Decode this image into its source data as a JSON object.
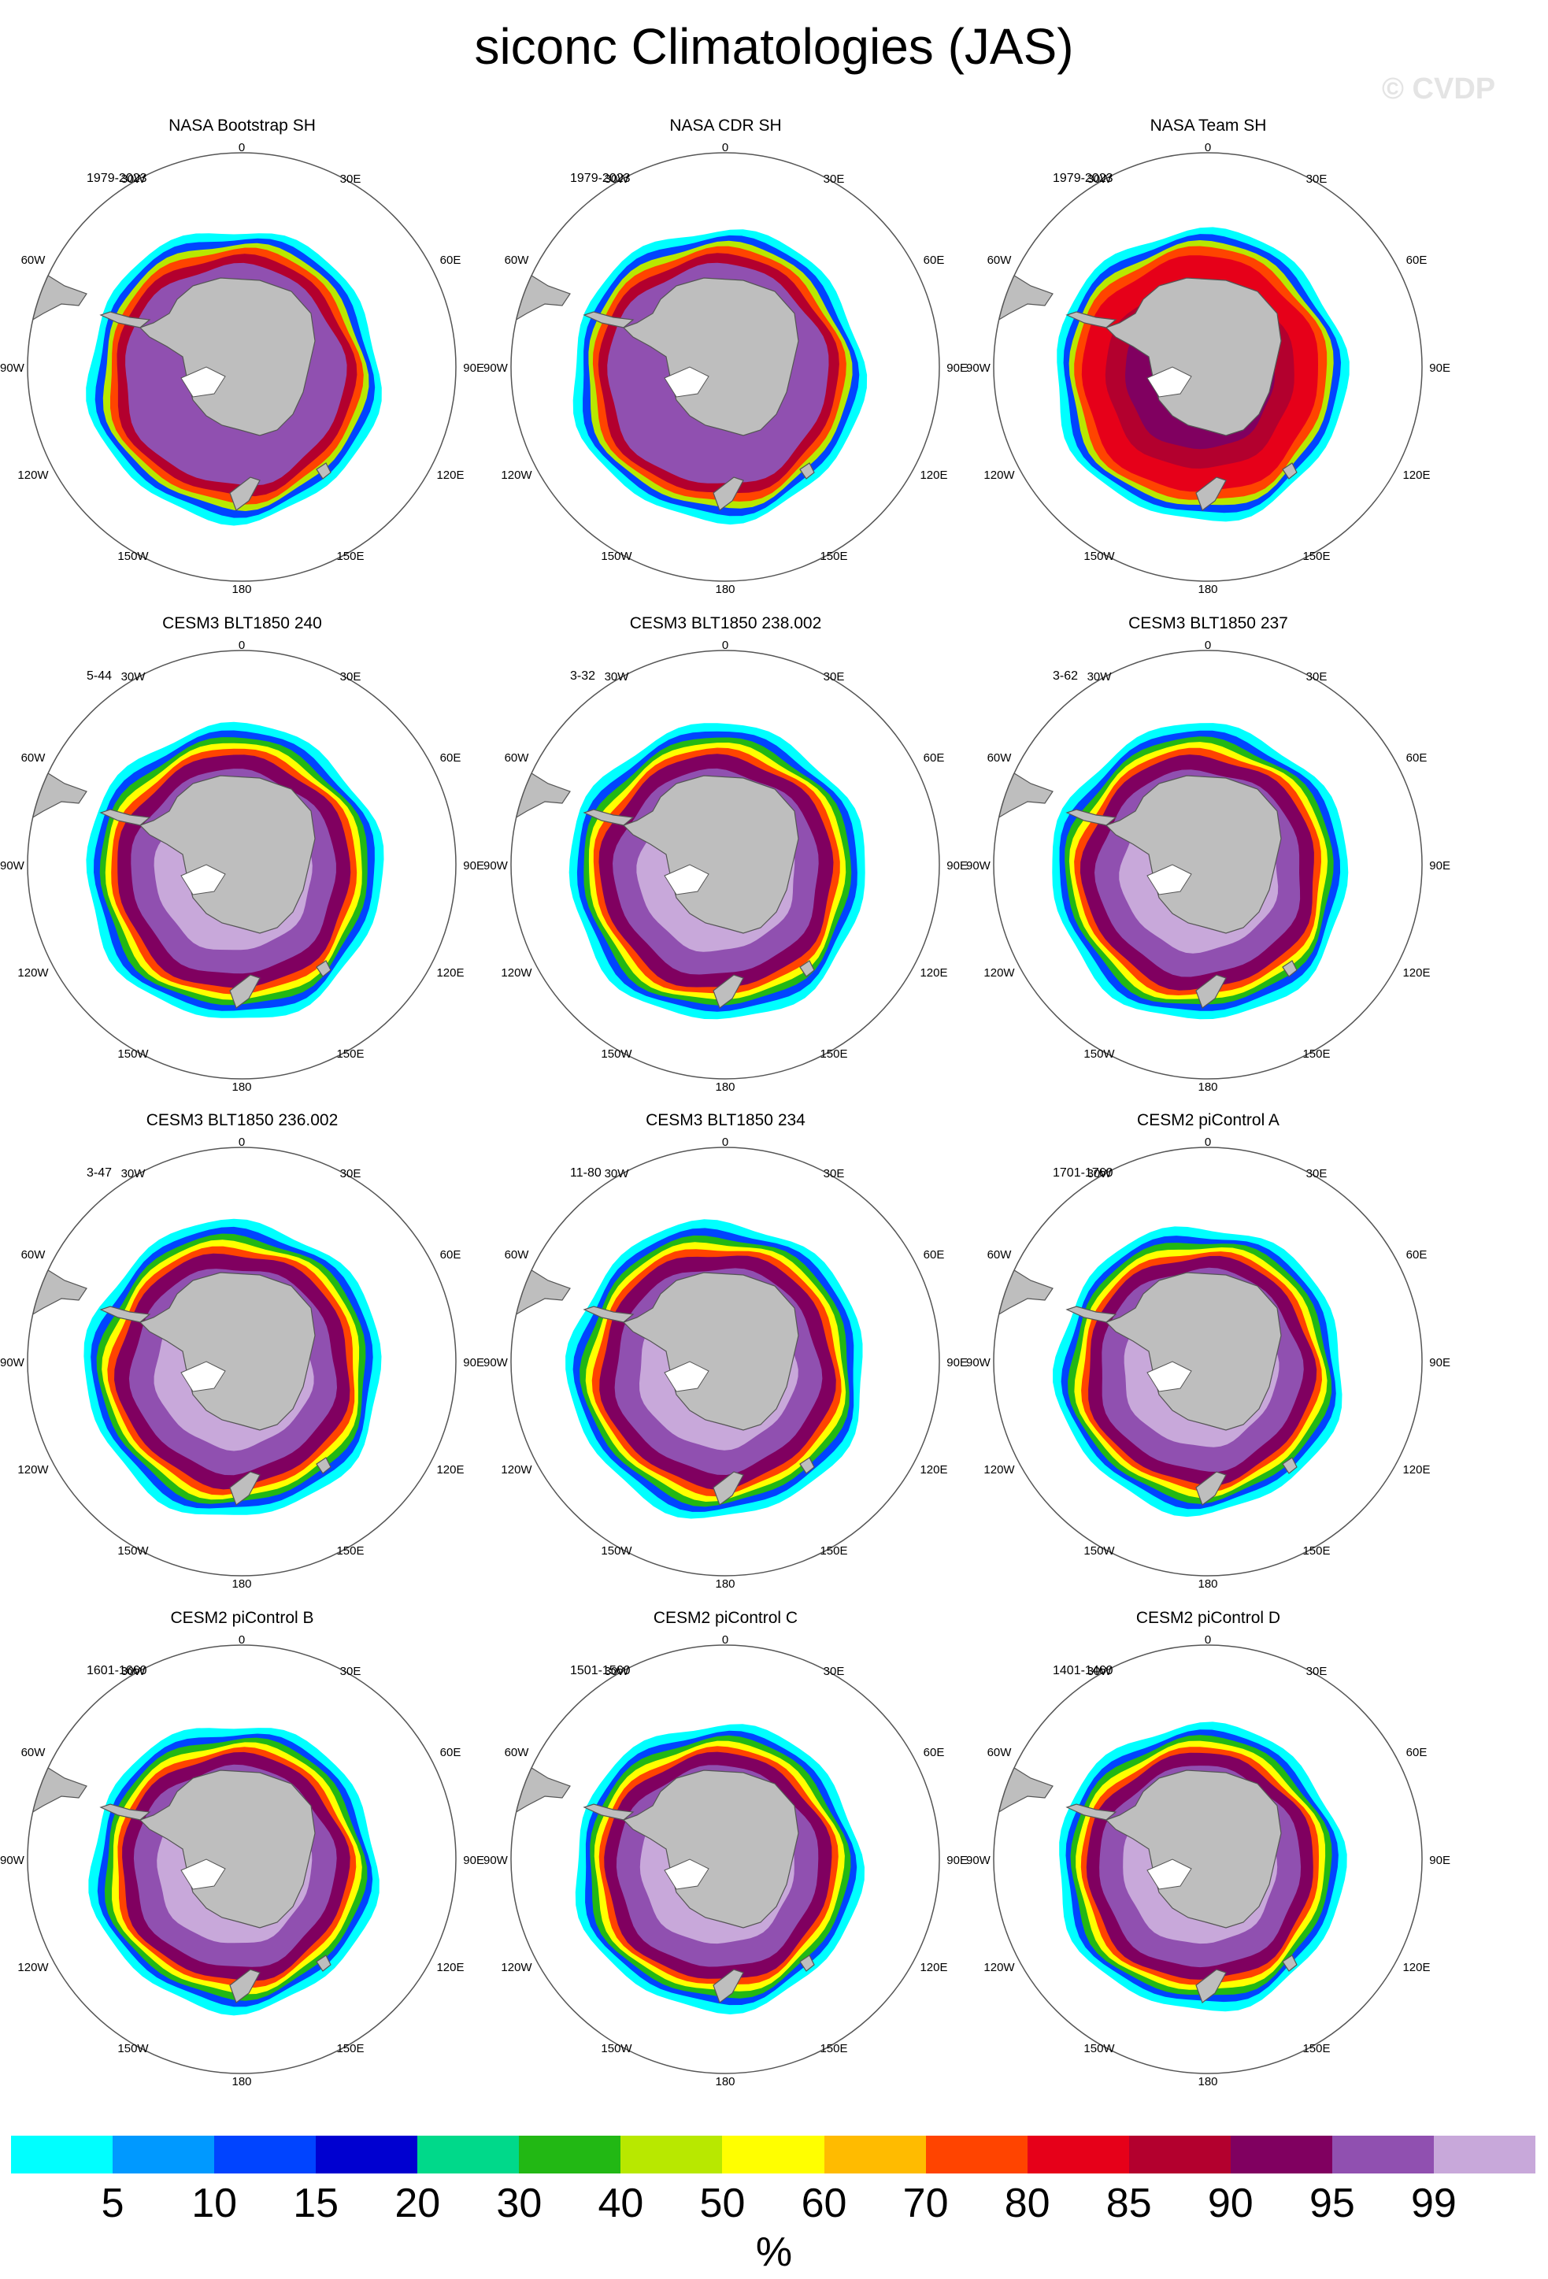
{
  "title": "siconc Climatologies (JAS)",
  "watermark": "© CVDP",
  "colors": {
    "land": "#bebebe",
    "coast": "#555555",
    "circle": "#555555"
  },
  "map_labels": {
    "top": "0",
    "bottom": "180",
    "right_top": "30E",
    "right_upper": "60E",
    "right_mid": "90E",
    "right_lower": "120E",
    "right_bottom": "150E",
    "left_top": "30W",
    "left_upper": "60W",
    "left_mid": "90W",
    "left_lower": "120W",
    "left_bottom": "150W"
  },
  "panels": [
    {
      "title": "NASA Bootstrap SH",
      "years": "1979-2023",
      "style": "obs"
    },
    {
      "title": "NASA CDR SH",
      "years": "1979-2023",
      "style": "obs"
    },
    {
      "title": "NASA Team SH",
      "years": "1979-2023",
      "style": "team"
    },
    {
      "title": "CESM3 BLT1850 240",
      "years": "5-44",
      "style": "model"
    },
    {
      "title": "CESM3 BLT1850 238.002",
      "years": "3-32",
      "style": "model"
    },
    {
      "title": "CESM3 BLT1850 237",
      "years": "3-62",
      "style": "model"
    },
    {
      "title": "CESM3 BLT1850 236.002",
      "years": "3-47",
      "style": "model"
    },
    {
      "title": "CESM3 BLT1850 234",
      "years": "11-80",
      "style": "model"
    },
    {
      "title": "CESM2 piControl A",
      "years": "1701-1760",
      "style": "cesm2"
    },
    {
      "title": "CESM2 piControl B",
      "years": "1601-1660",
      "style": "cesm2"
    },
    {
      "title": "CESM2 piControl C",
      "years": "1501-1560",
      "style": "cesm2"
    },
    {
      "title": "CESM2 piControl D",
      "years": "1401-1460",
      "style": "cesm2"
    }
  ],
  "colorbar": {
    "unit": "%",
    "ticks": [
      "5",
      "10",
      "15",
      "20",
      "30",
      "40",
      "50",
      "60",
      "70",
      "80",
      "85",
      "90",
      "95",
      "99"
    ],
    "colors": [
      "#00ffff",
      "#0099ff",
      "#0044ff",
      "#0000d0",
      "#00d98a",
      "#22b814",
      "#b8e800",
      "#ffff00",
      "#ffbb00",
      "#ff4400",
      "#e60019",
      "#b3002e",
      "#800060",
      "#9050b0",
      "#c8a8da"
    ]
  }
}
